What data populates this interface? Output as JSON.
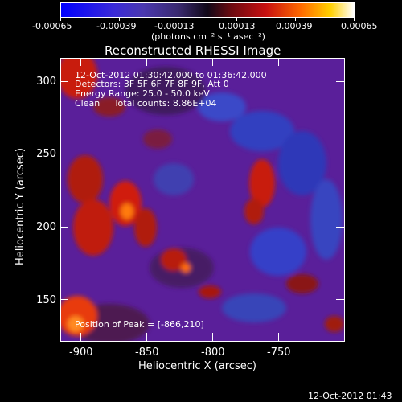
{
  "colorbar": {
    "ticks": [
      "-0.00065",
      "-0.00039",
      "-0.00013",
      "0.00013",
      "0.00039",
      "0.00065"
    ],
    "units": "(photons cm⁻² s⁻¹ asec⁻²)"
  },
  "title": "Reconstructed RHESSI Image",
  "info": {
    "time": "12-Oct-2012 01:30:42.000 to 01:36:42.000",
    "detectors": "Detectors: 3F 5F 6F 7F 8F 9F, Att 0",
    "energy": "Energy Range: 25.0 - 50.0 keV",
    "algo": "Clean     Total counts: 8.86E+04"
  },
  "peak": "Position of Peak = [-866,210]",
  "axes": {
    "xlabel": "Heliocentric X (arcsec)",
    "ylabel": "Heliocentric Y (arcsec)",
    "xticks": [
      "-900",
      "-850",
      "-800",
      "-750"
    ],
    "yticks": [
      "300",
      "250",
      "200",
      "150"
    ]
  },
  "timestamp": "12-Oct-2012 01:43",
  "colors": {
    "background": "#000000",
    "map_base": "#5a1f9a",
    "peak_red": "#e8200a"
  }
}
